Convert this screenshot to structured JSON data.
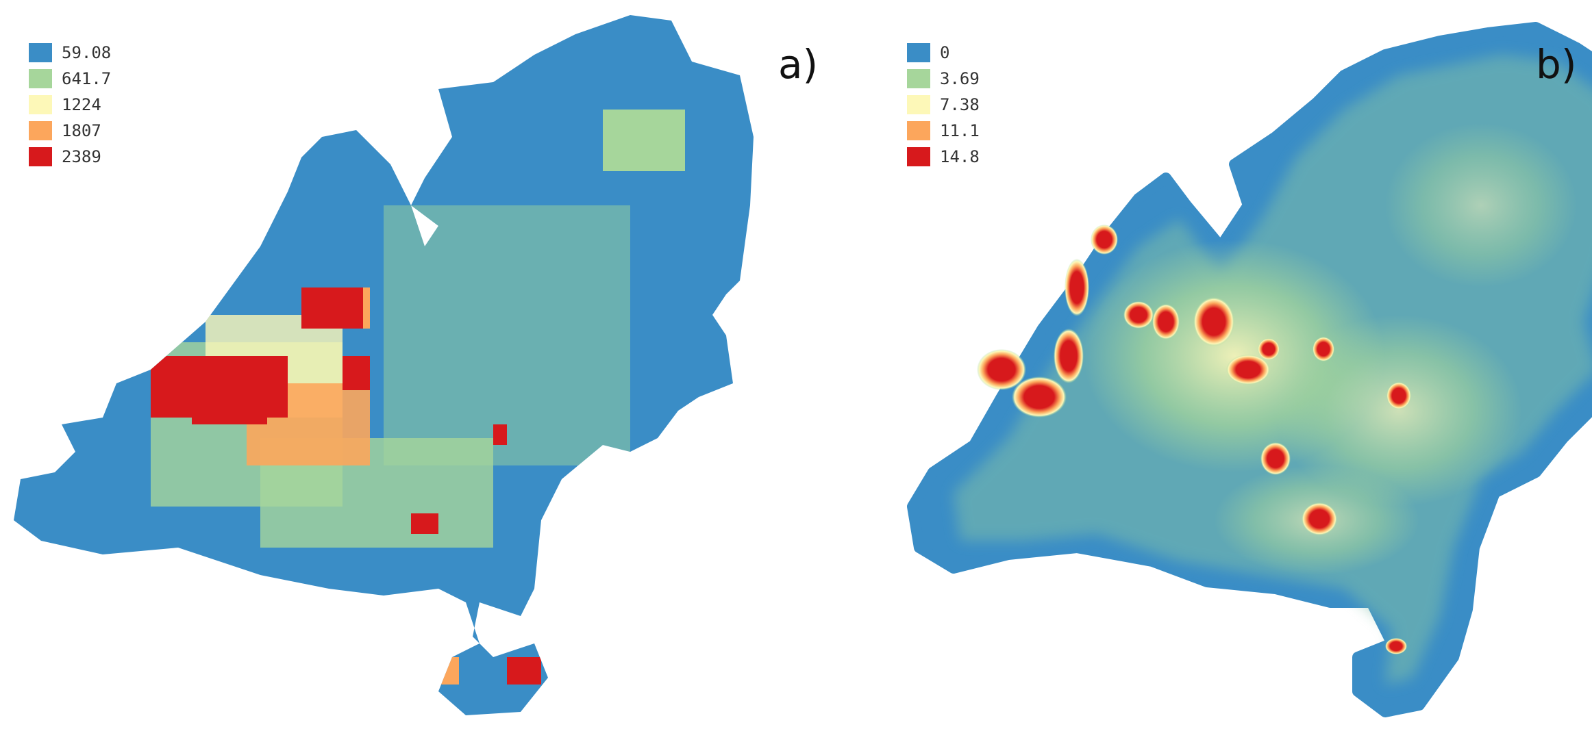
{
  "colors": {
    "class_1": "#3a8dc6",
    "class_2": "#a6d69b",
    "class_3": "#fdf8b8",
    "class_4": "#fca65c",
    "class_5": "#d7191c"
  },
  "panels": [
    {
      "label": "a)",
      "legend": [
        {
          "value": "59.08",
          "color": "#3a8dc6"
        },
        {
          "value": "641.7",
          "color": "#a6d69b"
        },
        {
          "value": "1224",
          "color": "#fdf8b8"
        },
        {
          "value": "1807",
          "color": "#fca65c"
        },
        {
          "value": "2389",
          "color": "#d7191c"
        }
      ]
    },
    {
      "label": "b)",
      "legend": [
        {
          "value": "0",
          "color": "#3a8dc6"
        },
        {
          "value": "3.69",
          "color": "#a6d69b"
        },
        {
          "value": "7.38",
          "color": "#fdf8b8"
        },
        {
          "value": "11.1",
          "color": "#fca65c"
        },
        {
          "value": "14.8",
          "color": "#d7191c"
        }
      ]
    }
  ]
}
